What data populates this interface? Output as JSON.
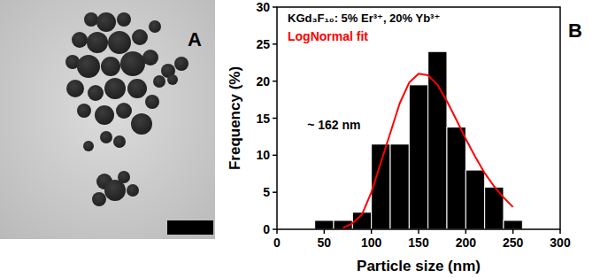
{
  "panel_labels": [
    "A",
    "B"
  ],
  "chart_data": {
    "type": "histogram",
    "title": "KGd₃F₁₀: 5% Er³⁺, 20% Yb³⁺",
    "x_label": "Particle size (nm)",
    "y_label": "Frequency (%)",
    "annotations": [
      "~ 162 nm"
    ],
    "bins": [
      40,
      60,
      80,
      100,
      120,
      140,
      160,
      180,
      200,
      220,
      240,
      260
    ],
    "series": [
      {
        "type": "bar",
        "color": "#000000",
        "values": [
          1.2,
          1.2,
          2.3,
          11.5,
          11.5,
          19.5,
          24,
          13.8,
          8,
          5.7,
          1.2
        ]
      },
      {
        "name": "LogNormal fit",
        "type": "line",
        "color": "#ff0000",
        "x": [
          70,
          80,
          90,
          100,
          110,
          120,
          130,
          140,
          150,
          160,
          170,
          180,
          190,
          200,
          210,
          220,
          230,
          240,
          250
        ],
        "values": [
          0.2,
          0.8,
          2,
          5,
          9,
          13,
          17,
          19.8,
          21,
          20.8,
          19.5,
          17.3,
          14.8,
          12.2,
          9.8,
          7.6,
          5.8,
          4.3,
          3
        ]
      }
    ],
    "xlim": [
      0,
      300
    ],
    "xticks": [
      0,
      50,
      100,
      150,
      200,
      250,
      300
    ],
    "ylim": [
      0,
      30
    ],
    "yticks": [
      0,
      5,
      10,
      15,
      20,
      25,
      30
    ],
    "grid": false,
    "legend": "upper left"
  }
}
